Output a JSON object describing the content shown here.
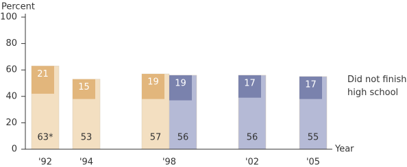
{
  "chart_data": {
    "type": "bar",
    "y_label": "Percent",
    "x_label": "Year",
    "annotation": "Did not finish high school",
    "categories": [
      "'92",
      "'94",
      "'98",
      "'02",
      "'05"
    ],
    "series": [
      {
        "color": "#f3dfc1",
        "inset_color": "#e2b67c",
        "values": [
          63,
          53,
          57,
          null,
          null
        ],
        "value_labels": [
          "63*",
          "53",
          "57",
          null,
          null
        ],
        "inset_values": [
          21,
          15,
          19,
          null,
          null
        ]
      },
      {
        "color": "#b5bad6",
        "inset_color": "#7a82ad",
        "values": [
          null,
          null,
          56,
          56,
          55
        ],
        "value_labels": [
          null,
          null,
          "56",
          "56",
          "55"
        ],
        "inset_values": [
          null,
          null,
          19,
          17,
          17
        ]
      }
    ],
    "ylim": [
      0,
      100
    ],
    "yticks": [
      0,
      20,
      40,
      60,
      80,
      100
    ]
  }
}
